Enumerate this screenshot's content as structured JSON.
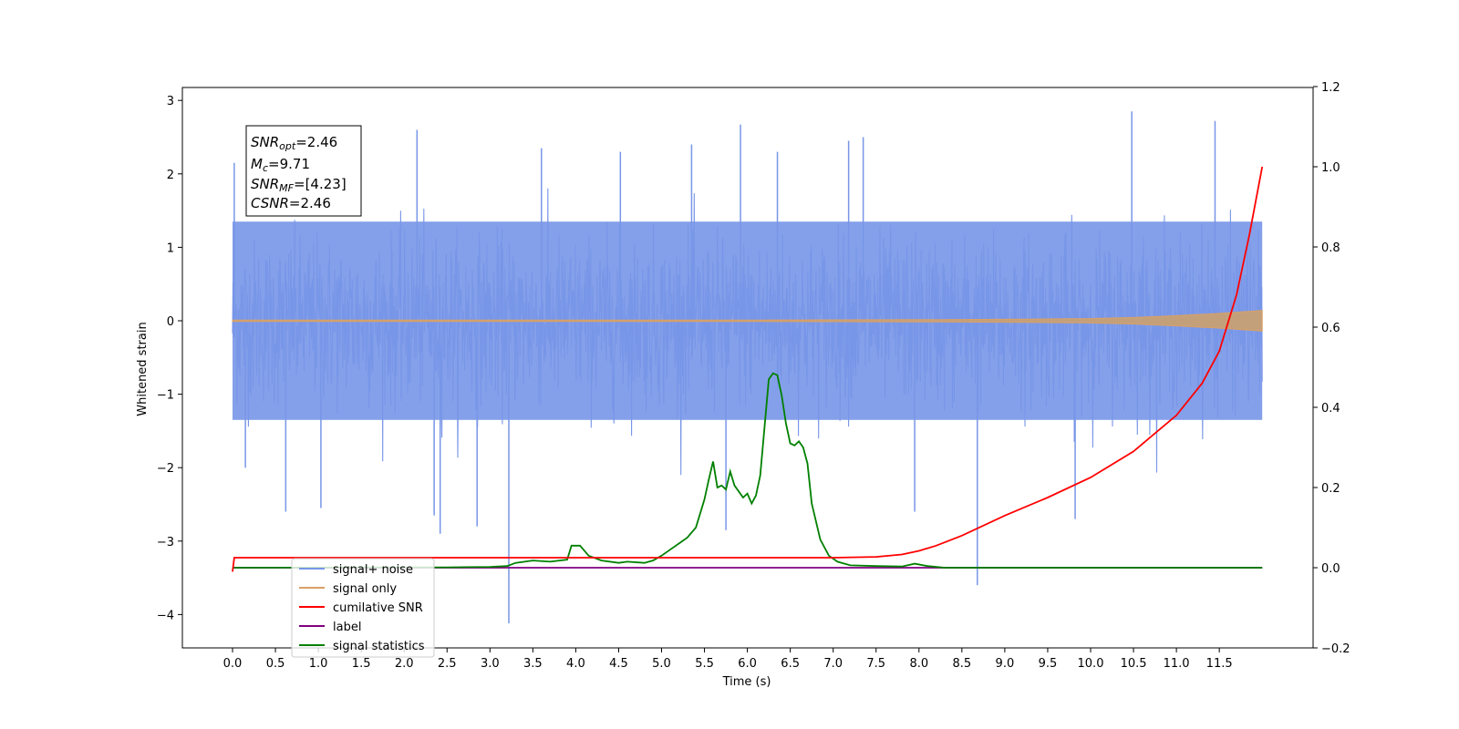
{
  "chart_data": {
    "type": "line",
    "xlabel": "Time (s)",
    "ylabel": "Whitened strain",
    "xlim": [
      -0.6,
      12.6
    ],
    "ylim_left": [
      -4.5,
      3.2
    ],
    "ylim_right": [
      -0.2,
      1.2
    ],
    "x_ticks": [
      "0.0",
      "0.5",
      "1.0",
      "1.5",
      "2.0",
      "2.5",
      "3.0",
      "3.5",
      "4.0",
      "4.5",
      "5.0",
      "5.5",
      "6.0",
      "6.5",
      "7.0",
      "7.5",
      "8.0",
      "8.5",
      "9.0",
      "9.5",
      "10.0",
      "10.5",
      "11.0",
      "11.5"
    ],
    "y_ticks_left": [
      "3",
      "2",
      "1",
      "0",
      "−1",
      "−2",
      "−3",
      "−4"
    ],
    "y_ticks_right": [
      "1.2",
      "1.0",
      "0.8",
      "0.6",
      "0.4",
      "0.2",
      "0.0",
      "−0.2"
    ],
    "grid": false,
    "legend_position": "lower-left",
    "annotation": {
      "snr_opt_label": "SNR",
      "snr_opt_sub": "opt",
      "snr_opt_value": "=2.46",
      "mc_label": "M",
      "mc_sub": "c",
      "mc_value": "=9.71",
      "snr_mf_label": "SNR",
      "snr_mf_sub": "MF",
      "snr_mf_value": "=[4.23]",
      "csnr_label": "CSNR",
      "csnr_value": "=2.46"
    },
    "series": [
      {
        "name": "signal+ noise",
        "color": "#7896e8",
        "axis": "left",
        "description_of_values": "dense noise band",
        "band_low": -1.35,
        "band_high": 1.35,
        "spikes": [
          {
            "x": 0.02,
            "y": 2.15
          },
          {
            "x": 0.15,
            "y": -2.0
          },
          {
            "x": 0.62,
            "y": -2.6
          },
          {
            "x": 1.03,
            "y": -2.55
          },
          {
            "x": 2.15,
            "y": 2.6
          },
          {
            "x": 2.35,
            "y": -2.65
          },
          {
            "x": 2.42,
            "y": -2.9
          },
          {
            "x": 2.85,
            "y": -2.8
          },
          {
            "x": 3.22,
            "y": -4.12
          },
          {
            "x": 3.6,
            "y": 2.35
          },
          {
            "x": 4.52,
            "y": 2.3
          },
          {
            "x": 5.35,
            "y": 2.4
          },
          {
            "x": 5.75,
            "y": -2.85
          },
          {
            "x": 5.92,
            "y": 2.67
          },
          {
            "x": 6.35,
            "y": 2.3
          },
          {
            "x": 7.18,
            "y": 2.45
          },
          {
            "x": 7.35,
            "y": 2.5
          },
          {
            "x": 7.95,
            "y": -2.6
          },
          {
            "x": 8.68,
            "y": -3.6
          },
          {
            "x": 10.48,
            "y": 2.85
          },
          {
            "x": 11.45,
            "y": 2.72
          },
          {
            "x": 9.82,
            "y": -2.7
          }
        ]
      },
      {
        "name": "signal only",
        "color": "#d9a066",
        "axis": "left",
        "envelope": {
          "x": [
            0,
            6,
            8,
            9,
            10,
            10.5,
            11,
            11.5,
            12.0
          ],
          "amp": [
            0.01,
            0.01,
            0.015,
            0.02,
            0.03,
            0.045,
            0.07,
            0.1,
            0.14
          ]
        }
      },
      {
        "name": "cumilative SNR",
        "color": "#ff0000",
        "axis": "right",
        "x": [
          0,
          0.02,
          6.0,
          7.0,
          7.5,
          7.8,
          8.0,
          8.2,
          8.5,
          9.0,
          9.5,
          10.0,
          10.5,
          11.0,
          11.3,
          11.5,
          11.7,
          11.85,
          12.0
        ],
        "y": [
          -0.01,
          0.025,
          0.025,
          0.025,
          0.027,
          0.033,
          0.042,
          0.055,
          0.08,
          0.13,
          0.175,
          0.225,
          0.29,
          0.38,
          0.46,
          0.54,
          0.68,
          0.83,
          1.0
        ]
      },
      {
        "name": "label",
        "color": "#800080",
        "axis": "right",
        "x": [
          0,
          12.0
        ],
        "y": [
          0.0,
          0.0
        ]
      },
      {
        "name": "signal statistics",
        "color": "#008000",
        "axis": "right",
        "x": [
          0,
          2.5,
          3.0,
          3.2,
          3.3,
          3.5,
          3.7,
          3.9,
          3.95,
          4.05,
          4.15,
          4.3,
          4.5,
          4.6,
          4.8,
          4.9,
          5.0,
          5.1,
          5.2,
          5.3,
          5.4,
          5.5,
          5.55,
          5.6,
          5.65,
          5.7,
          5.75,
          5.8,
          5.85,
          5.95,
          6.0,
          6.05,
          6.1,
          6.15,
          6.2,
          6.25,
          6.3,
          6.35,
          6.4,
          6.45,
          6.5,
          6.55,
          6.6,
          6.65,
          6.7,
          6.75,
          6.85,
          6.95,
          7.05,
          7.2,
          7.5,
          7.8,
          7.95,
          8.1,
          8.3,
          12.0
        ],
        "y": [
          0.0,
          0.001,
          0.002,
          0.004,
          0.012,
          0.018,
          0.015,
          0.02,
          0.055,
          0.055,
          0.03,
          0.018,
          0.012,
          0.015,
          0.012,
          0.018,
          0.03,
          0.045,
          0.06,
          0.075,
          0.1,
          0.17,
          0.22,
          0.265,
          0.2,
          0.205,
          0.195,
          0.24,
          0.205,
          0.175,
          0.185,
          0.16,
          0.18,
          0.23,
          0.35,
          0.47,
          0.485,
          0.48,
          0.43,
          0.36,
          0.31,
          0.305,
          0.315,
          0.3,
          0.26,
          0.16,
          0.07,
          0.03,
          0.015,
          0.006,
          0.004,
          0.003,
          0.01,
          0.004,
          0.0,
          0.0
        ]
      }
    ]
  }
}
